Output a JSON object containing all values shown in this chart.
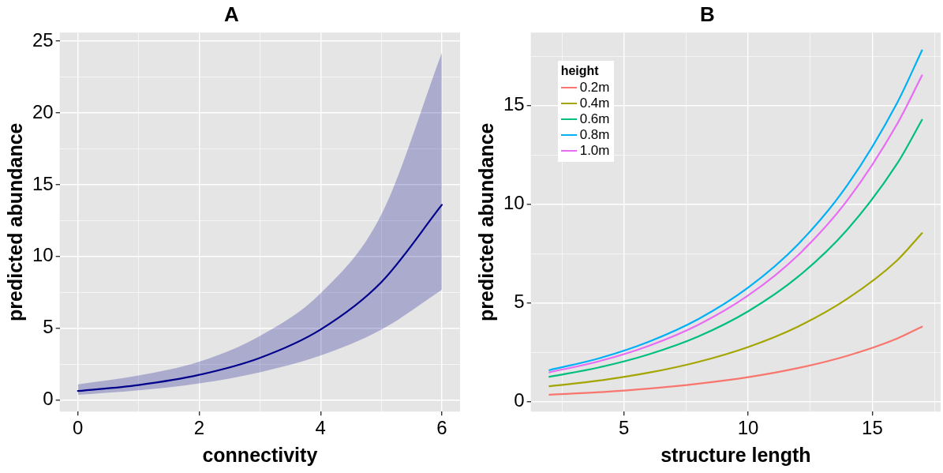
{
  "chart_data": [
    {
      "type": "line",
      "title": "A",
      "xlabel": "connectivity",
      "ylabel": "predicted abundance",
      "x": [
        0,
        1,
        2,
        3,
        4,
        5,
        6
      ],
      "series": [
        {
          "color": "#00008b",
          "values": [
            0.63,
            1.05,
            1.76,
            2.94,
            4.91,
            8.2,
            13.6
          ],
          "lower": [
            0.36,
            0.68,
            1.16,
            1.94,
            3.1,
            4.9,
            7.68
          ],
          "upper": [
            1.1,
            1.72,
            2.68,
            4.47,
            7.43,
            12.9,
            24.2
          ]
        }
      ],
      "xlim": [
        -0.3,
        6.3
      ],
      "xticks": [
        0,
        {
          "value": 1,
          "label": null
        },
        2,
        {
          "value": 3,
          "label": null
        },
        4,
        {
          "value": 5,
          "label": null
        },
        6
      ],
      "ylim": [
        -0.8,
        25.6
      ],
      "yticks": [
        0,
        {
          "value": 2.5,
          "label": null
        },
        5,
        {
          "value": 7.5,
          "label": null
        },
        10,
        {
          "value": 12.5,
          "label": null
        },
        15,
        {
          "value": 17.5,
          "label": null
        },
        20,
        {
          "value": 22.5,
          "label": null
        },
        25
      ],
      "grid": true,
      "marker": "none"
    },
    {
      "type": "line",
      "title": "B",
      "xlabel": "structure length",
      "ylabel": "predicted abundance",
      "legend_title": "height",
      "x": [
        2,
        4,
        6,
        8,
        10,
        12,
        14,
        16,
        17
      ],
      "series": [
        {
          "name": "0.2m",
          "color": "#f8766d",
          "values": [
            0.35,
            0.48,
            0.66,
            0.91,
            1.24,
            1.7,
            2.33,
            3.2,
            3.8
          ]
        },
        {
          "name": "0.4m",
          "color": "#a3a500",
          "values": [
            0.78,
            1.07,
            1.47,
            2.02,
            2.77,
            3.8,
            5.22,
            7.16,
            8.54
          ]
        },
        {
          "name": "0.6m",
          "color": "#00bf7d",
          "values": [
            1.26,
            1.74,
            2.4,
            3.31,
            4.58,
            6.32,
            8.73,
            12.06,
            14.28
          ]
        },
        {
          "name": "0.8m",
          "color": "#00b0f6",
          "values": [
            1.6,
            2.2,
            3.04,
            4.19,
            5.78,
            7.96,
            10.98,
            15.14,
            17.8
          ]
        },
        {
          "name": "1.0m",
          "color": "#e76bf3",
          "values": [
            1.49,
            2.05,
            2.83,
            3.9,
            5.38,
            7.41,
            10.21,
            14.07,
            16.53
          ]
        }
      ],
      "xlim": [
        1.25,
        17.75
      ],
      "xticks": [
        {
          "value": 2.5,
          "label": null
        },
        5,
        {
          "value": 7.5,
          "label": null
        },
        10,
        {
          "value": 12.5,
          "label": null
        },
        15,
        {
          "value": 17.5,
          "label": null
        }
      ],
      "ylim": [
        -0.5,
        18.7
      ],
      "yticks": [
        0,
        {
          "value": 2.5,
          "label": null
        },
        5,
        {
          "value": 7.5,
          "label": null
        },
        10,
        {
          "value": 12.5,
          "label": null
        },
        15,
        {
          "value": 17.5,
          "label": null
        }
      ],
      "grid": true,
      "legend": "top left",
      "marker": "none"
    }
  ]
}
